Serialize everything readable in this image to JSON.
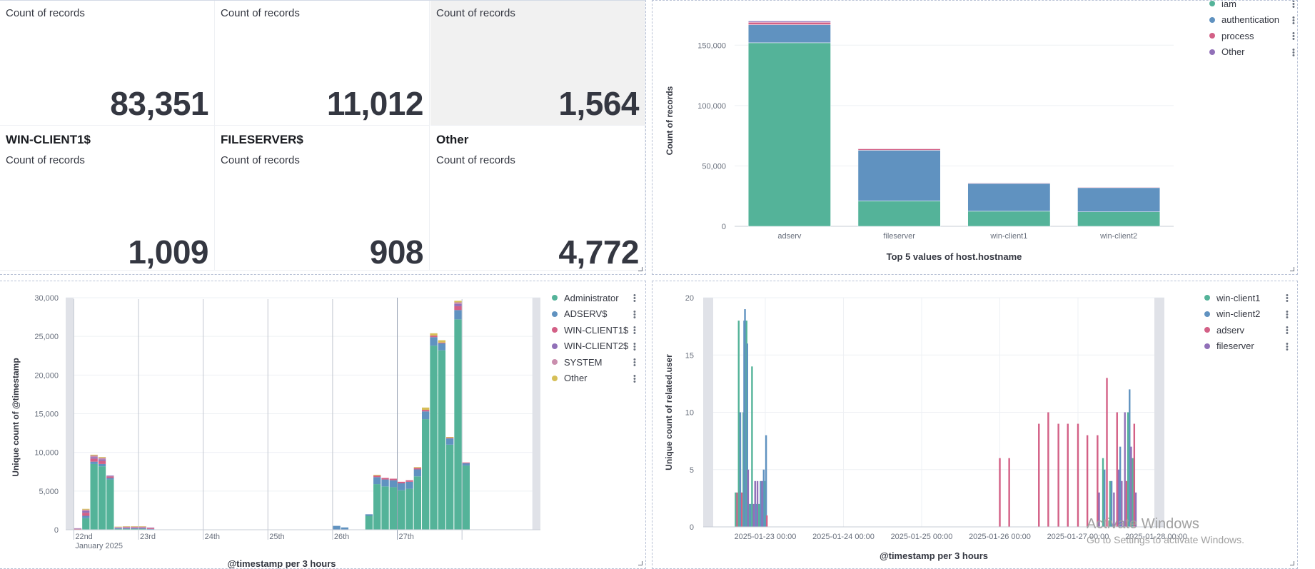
{
  "metrics": [
    {
      "title": "",
      "subtitle": "Count of records",
      "value": "83,351",
      "highlight": false
    },
    {
      "title": "",
      "subtitle": "Count of records",
      "value": "11,012",
      "highlight": false
    },
    {
      "title": "",
      "subtitle": "Count of records",
      "value": "1,564",
      "highlight": true
    },
    {
      "title": "WIN-CLIENT1$",
      "subtitle": "Count of records",
      "value": "1,009",
      "highlight": false
    },
    {
      "title": "FILESERVER$",
      "subtitle": "Count of records",
      "value": "908",
      "highlight": false
    },
    {
      "title": "Other",
      "subtitle": "Count of records",
      "value": "4,772",
      "highlight": false
    }
  ],
  "bar_legend": [
    {
      "label": "iam",
      "color": "#54b399"
    },
    {
      "label": "authentication",
      "color": "#6092c0"
    },
    {
      "label": "process",
      "color": "#d36086"
    },
    {
      "label": "Other",
      "color": "#9170b8"
    }
  ],
  "hist_legend": [
    {
      "label": "Administrator",
      "color": "#54b399"
    },
    {
      "label": "ADSERV$",
      "color": "#6092c0"
    },
    {
      "label": "WIN-CLIENT1$",
      "color": "#d36086"
    },
    {
      "label": "WIN-CLIENT2$",
      "color": "#9170b8"
    },
    {
      "label": "SYSTEM",
      "color": "#ca8eae"
    },
    {
      "label": "Other",
      "color": "#d6bf57"
    }
  ],
  "line_legend": [
    {
      "label": "win-client1",
      "color": "#54b399"
    },
    {
      "label": "win-client2",
      "color": "#6092c0"
    },
    {
      "label": "adserv",
      "color": "#d36086"
    },
    {
      "label": "fileserver",
      "color": "#9170b8"
    }
  ],
  "watermark": {
    "line1": "Activate Windows",
    "line2": "Go to Settings to activate Windows."
  },
  "chart_data": [
    {
      "type": "bar",
      "stacked": true,
      "xlabel": "Top 5 values of host.hostname",
      "ylabel": "Count of records",
      "categories": [
        "adserv",
        "fileserver",
        "win-client1",
        "win-client2"
      ],
      "series": [
        {
          "name": "iam",
          "values": [
            152000,
            21000,
            12500,
            12000
          ]
        },
        {
          "name": "authentication",
          "values": [
            15000,
            42000,
            23000,
            20000
          ]
        },
        {
          "name": "process",
          "values": [
            2000,
            1200,
            500,
            500
          ]
        },
        {
          "name": "Other",
          "values": [
            1000,
            300,
            200,
            200
          ]
        }
      ],
      "ylim": [
        0,
        175000
      ],
      "yticks": [
        0,
        50000,
        100000,
        150000
      ],
      "ytick_labels": [
        "0",
        "50,000",
        "100,000",
        "150,000"
      ]
    },
    {
      "type": "bar",
      "stacked": true,
      "xlabel": "@timestamp per 3 hours",
      "ylabel": "Unique count of @timestamp",
      "ylim": [
        0,
        30000
      ],
      "yticks": [
        0,
        5000,
        10000,
        15000,
        20000,
        25000,
        30000
      ],
      "ytick_labels": [
        "0",
        "5,000",
        "10,000",
        "15,000",
        "20,000",
        "25,000",
        "30,000"
      ],
      "x_labels": [
        "22nd",
        "23rd",
        "24th",
        "25th",
        "26th",
        "27th"
      ],
      "x_sublabel": "January 2025",
      "bins": [
        {
          "i": 0,
          "v": [
            0,
            0,
            100,
            50,
            50,
            0
          ]
        },
        {
          "i": 1,
          "v": [
            1500,
            300,
            400,
            200,
            200,
            100
          ]
        },
        {
          "i": 2,
          "v": [
            8500,
            300,
            400,
            200,
            200,
            100
          ]
        },
        {
          "i": 3,
          "v": [
            8200,
            300,
            400,
            200,
            200,
            100
          ]
        },
        {
          "i": 4,
          "v": [
            6500,
            200,
            200,
            100,
            0,
            0
          ]
        },
        {
          "i": 5,
          "v": [
            100,
            100,
            50,
            50,
            50,
            50
          ]
        },
        {
          "i": 6,
          "v": [
            100,
            100,
            100,
            50,
            50,
            50
          ]
        },
        {
          "i": 7,
          "v": [
            100,
            100,
            100,
            50,
            50,
            50
          ]
        },
        {
          "i": 8,
          "v": [
            100,
            100,
            100,
            50,
            50,
            50
          ]
        },
        {
          "i": 9,
          "v": [
            0,
            100,
            100,
            50,
            50,
            0
          ]
        },
        {
          "i": 32,
          "v": [
            0,
            500,
            0,
            0,
            0,
            0
          ]
        },
        {
          "i": 33,
          "v": [
            0,
            300,
            0,
            0,
            0,
            0
          ]
        },
        {
          "i": 36,
          "v": [
            1800,
            200,
            0,
            0,
            0,
            0
          ]
        },
        {
          "i": 37,
          "v": [
            5900,
            900,
            200,
            0,
            0,
            100
          ]
        },
        {
          "i": 38,
          "v": [
            5600,
            900,
            200,
            0,
            0,
            0
          ]
        },
        {
          "i": 39,
          "v": [
            5500,
            900,
            200,
            0,
            0,
            0
          ]
        },
        {
          "i": 40,
          "v": [
            5100,
            900,
            200,
            0,
            0,
            0
          ]
        },
        {
          "i": 41,
          "v": [
            5300,
            900,
            200,
            0,
            0,
            0
          ]
        },
        {
          "i": 42,
          "v": [
            6900,
            900,
            200,
            0,
            0,
            100
          ]
        },
        {
          "i": 43,
          "v": [
            14300,
            1000,
            200,
            0,
            0,
            300
          ]
        },
        {
          "i": 44,
          "v": [
            23800,
            1100,
            200,
            0,
            0,
            300
          ]
        },
        {
          "i": 45,
          "v": [
            23200,
            900,
            100,
            0,
            0,
            300
          ]
        },
        {
          "i": 46,
          "v": [
            11000,
            800,
            100,
            0,
            0,
            100
          ]
        },
        {
          "i": 47,
          "v": [
            27200,
            1200,
            500,
            300,
            200,
            200
          ]
        },
        {
          "i": 48,
          "v": [
            8300,
            300,
            100,
            0,
            0,
            0
          ]
        }
      ]
    },
    {
      "type": "bar",
      "stacked": false,
      "xlabel": "@timestamp per 3 hours",
      "ylabel": "Unique count of related.user",
      "ylim": [
        0,
        20
      ],
      "yticks": [
        0,
        5,
        10,
        15,
        20
      ],
      "ytick_labels": [
        "0",
        "5",
        "10",
        "15",
        "20"
      ],
      "x_labels": [
        "2025-01-23 00:00",
        "2025-01-24 00:00",
        "2025-01-25 00:00",
        "2025-01-26 00:00",
        "2025-01-27 00:00",
        "2025-01-28 00:00"
      ],
      "bars": [
        {
          "s": 0,
          "t": -0.38,
          "v": 3
        },
        {
          "s": 2,
          "t": -0.36,
          "v": 3
        },
        {
          "s": 0,
          "t": -0.34,
          "v": 18
        },
        {
          "s": 1,
          "t": -0.32,
          "v": 10
        },
        {
          "s": 2,
          "t": -0.3,
          "v": 3
        },
        {
          "s": 0,
          "t": -0.28,
          "v": 10
        },
        {
          "s": 1,
          "t": -0.27,
          "v": 18
        },
        {
          "s": 1,
          "t": -0.26,
          "v": 19
        },
        {
          "s": 0,
          "t": -0.24,
          "v": 18
        },
        {
          "s": 1,
          "t": -0.23,
          "v": 16
        },
        {
          "s": 3,
          "t": -0.22,
          "v": 5
        },
        {
          "s": 0,
          "t": -0.2,
          "v": 2
        },
        {
          "s": 1,
          "t": -0.19,
          "v": 2
        },
        {
          "s": 0,
          "t": -0.17,
          "v": 14
        },
        {
          "s": 3,
          "t": -0.15,
          "v": 2
        },
        {
          "s": 3,
          "t": -0.13,
          "v": 4
        },
        {
          "s": 1,
          "t": -0.12,
          "v": 2
        },
        {
          "s": 3,
          "t": -0.1,
          "v": 4
        },
        {
          "s": 0,
          "t": -0.08,
          "v": 2
        },
        {
          "s": 1,
          "t": -0.06,
          "v": 4
        },
        {
          "s": 3,
          "t": -0.04,
          "v": 4
        },
        {
          "s": 3,
          "t": -0.03,
          "v": 3
        },
        {
          "s": 1,
          "t": -0.02,
          "v": 5
        },
        {
          "s": 0,
          "t": 0.0,
          "v": 4
        },
        {
          "s": 1,
          "t": 0.01,
          "v": 8
        },
        {
          "s": 2,
          "t": 0.02,
          "v": 1
        },
        {
          "s": 2,
          "t": 3.0,
          "v": 6
        },
        {
          "s": 2,
          "t": 3.12,
          "v": 6
        },
        {
          "s": 2,
          "t": 3.5,
          "v": 9
        },
        {
          "s": 2,
          "t": 3.62,
          "v": 10
        },
        {
          "s": 2,
          "t": 3.75,
          "v": 9
        },
        {
          "s": 2,
          "t": 3.87,
          "v": 9
        },
        {
          "s": 2,
          "t": 4.0,
          "v": 9
        },
        {
          "s": 2,
          "t": 4.12,
          "v": 8
        },
        {
          "s": 2,
          "t": 4.25,
          "v": 8
        },
        {
          "s": 3,
          "t": 4.27,
          "v": 3
        },
        {
          "s": 0,
          "t": 4.32,
          "v": 6
        },
        {
          "s": 1,
          "t": 4.34,
          "v": 5
        },
        {
          "s": 2,
          "t": 4.37,
          "v": 13
        },
        {
          "s": 0,
          "t": 4.41,
          "v": 4
        },
        {
          "s": 1,
          "t": 4.43,
          "v": 4
        },
        {
          "s": 3,
          "t": 4.46,
          "v": 3
        },
        {
          "s": 2,
          "t": 4.5,
          "v": 10
        },
        {
          "s": 3,
          "t": 4.52,
          "v": 5
        },
        {
          "s": 1,
          "t": 4.54,
          "v": 7
        },
        {
          "s": 3,
          "t": 4.56,
          "v": 4
        },
        {
          "s": 3,
          "t": 4.6,
          "v": 10
        },
        {
          "s": 2,
          "t": 4.62,
          "v": 4
        },
        {
          "s": 0,
          "t": 4.64,
          "v": 10
        },
        {
          "s": 1,
          "t": 4.66,
          "v": 12
        },
        {
          "s": 3,
          "t": 4.68,
          "v": 7
        },
        {
          "s": 0,
          "t": 4.7,
          "v": 6
        },
        {
          "s": 2,
          "t": 4.72,
          "v": 9
        },
        {
          "s": 3,
          "t": 4.74,
          "v": 3
        }
      ]
    }
  ]
}
